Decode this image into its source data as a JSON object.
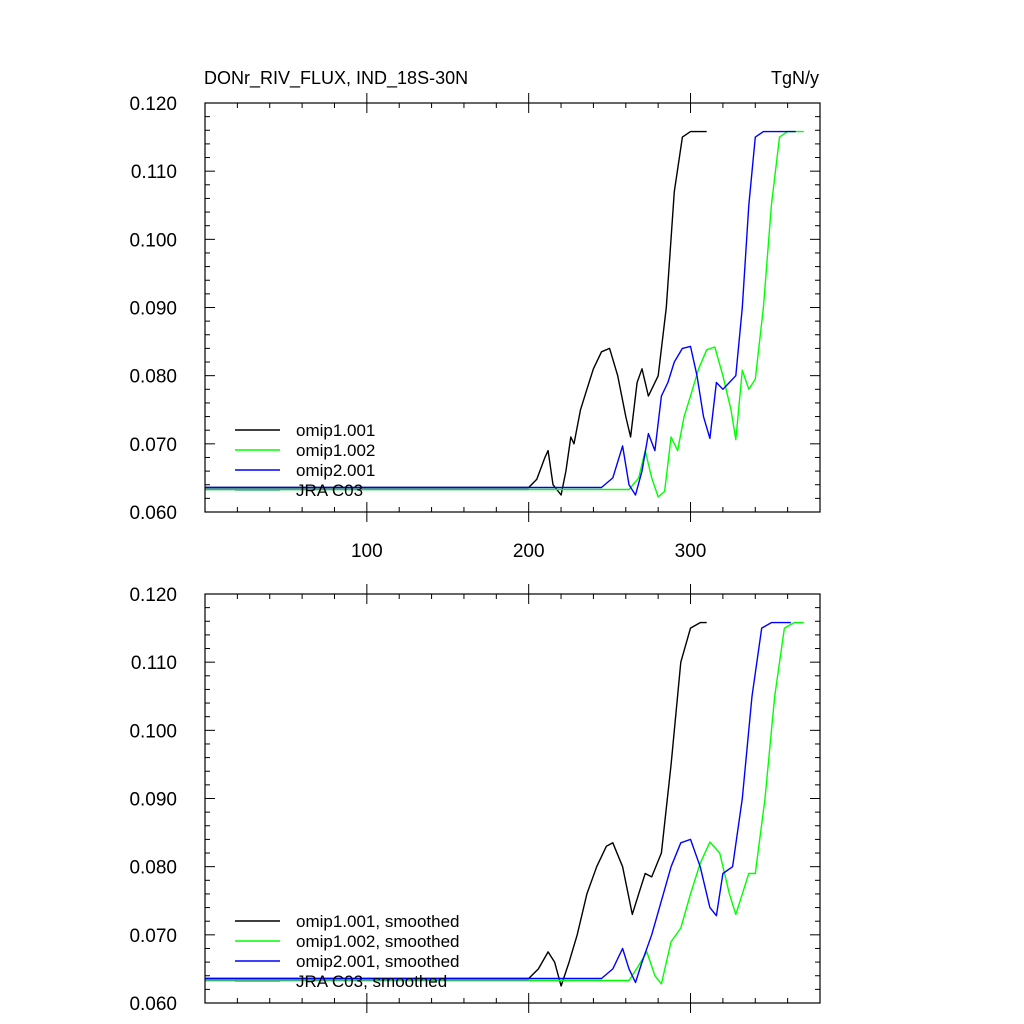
{
  "figure": {
    "title": "DONr_RIV_FLUX, IND_18S-30N",
    "units": "TgN/y"
  },
  "chart_data": [
    {
      "type": "line",
      "title": "DONr_RIV_FLUX, IND_18S-30N",
      "units": "TgN/y",
      "xlim": [
        0,
        380
      ],
      "ylim": [
        0.06,
        0.12
      ],
      "xticks": [
        100,
        200,
        300
      ],
      "xticklabels": [
        "100",
        "200",
        "300"
      ],
      "yticks": [
        0.06,
        0.07,
        0.08,
        0.09,
        0.1,
        0.11,
        0.12
      ],
      "yticklabels": [
        "0.060",
        "0.070",
        "0.080",
        "0.090",
        "0.100",
        "0.110",
        "0.120"
      ],
      "legend_position": "bottom-left",
      "series": [
        {
          "name": "omip1.001",
          "color": "#000000",
          "x": [
            0,
            200,
            205,
            210,
            212,
            215,
            220,
            223,
            226,
            228,
            232,
            236,
            240,
            245,
            250,
            255,
            260,
            263,
            267,
            270,
            274,
            280,
            285,
            290,
            295,
            300,
            305,
            310
          ],
          "y": [
            0.0636,
            0.0636,
            0.0648,
            0.068,
            0.069,
            0.064,
            0.0625,
            0.066,
            0.071,
            0.07,
            0.075,
            0.078,
            0.081,
            0.0835,
            0.084,
            0.08,
            0.074,
            0.071,
            0.079,
            0.081,
            0.077,
            0.08,
            0.09,
            0.107,
            0.115,
            0.1158,
            0.1158,
            0.1158
          ]
        },
        {
          "name": "omip1.002",
          "color": "#00ff00",
          "x": [
            0,
            240,
            262,
            268,
            272,
            276,
            280,
            284,
            288,
            292,
            296,
            300,
            305,
            310,
            315,
            320,
            325,
            328,
            332,
            336,
            340,
            345,
            350,
            355,
            360,
            365,
            370
          ],
          "y": [
            0.0633,
            0.0633,
            0.0633,
            0.065,
            0.069,
            0.065,
            0.0622,
            0.063,
            0.071,
            0.069,
            0.074,
            0.077,
            0.081,
            0.0838,
            0.0842,
            0.08,
            0.075,
            0.0706,
            0.0808,
            0.078,
            0.0795,
            0.09,
            0.105,
            0.115,
            0.1158,
            0.1158,
            0.1158
          ]
        },
        {
          "name": "omip2.001",
          "color": "#0000ff",
          "x": [
            0,
            245,
            252,
            258,
            262,
            266,
            270,
            274,
            278,
            282,
            286,
            290,
            295,
            300,
            304,
            308,
            312,
            316,
            320,
            324,
            328,
            332,
            336,
            340,
            345,
            350,
            355,
            360,
            365
          ],
          "y": [
            0.0636,
            0.0636,
            0.065,
            0.0697,
            0.064,
            0.0625,
            0.066,
            0.0715,
            0.069,
            0.077,
            0.079,
            0.082,
            0.084,
            0.0843,
            0.08,
            0.074,
            0.0708,
            0.079,
            0.078,
            0.079,
            0.08,
            0.09,
            0.105,
            0.115,
            0.1158,
            0.1158,
            0.1158,
            0.1158,
            0.1158
          ]
        },
        {
          "name": "JRA C03",
          "color": "#3cb371",
          "x": [
            0,
            200
          ],
          "y": [
            0.0633,
            0.0633
          ]
        }
      ]
    },
    {
      "type": "line",
      "title": "",
      "xlim": [
        0,
        380
      ],
      "ylim": [
        0.06,
        0.12
      ],
      "xticks": [
        100,
        200,
        300
      ],
      "xticklabels": [],
      "yticks": [
        0.06,
        0.07,
        0.08,
        0.09,
        0.1,
        0.11,
        0.12
      ],
      "yticklabels": [
        "0.060",
        "0.070",
        "0.080",
        "0.090",
        "0.100",
        "0.110",
        "0.120"
      ],
      "legend_position": "bottom-left",
      "series": [
        {
          "name": "omip1.001, smoothed",
          "color": "#000000",
          "x": [
            0,
            200,
            206,
            212,
            216,
            220,
            225,
            230,
            236,
            242,
            248,
            252,
            258,
            264,
            268,
            272,
            276,
            282,
            288,
            294,
            300,
            306,
            310
          ],
          "y": [
            0.0636,
            0.0636,
            0.065,
            0.0675,
            0.066,
            0.0625,
            0.066,
            0.07,
            0.076,
            0.08,
            0.083,
            0.0835,
            0.08,
            0.073,
            0.076,
            0.079,
            0.0785,
            0.082,
            0.095,
            0.11,
            0.115,
            0.1158,
            0.1158
          ]
        },
        {
          "name": "omip1.002, smoothed",
          "color": "#00ff00",
          "x": [
            0,
            250,
            262,
            268,
            273,
            278,
            282,
            288,
            294,
            300,
            306,
            312,
            318,
            324,
            328,
            332,
            336,
            340,
            346,
            352,
            358,
            364,
            370
          ],
          "y": [
            0.0633,
            0.0633,
            0.0633,
            0.0655,
            0.0675,
            0.064,
            0.0628,
            0.069,
            0.071,
            0.076,
            0.0805,
            0.0836,
            0.082,
            0.076,
            0.073,
            0.076,
            0.079,
            0.079,
            0.09,
            0.105,
            0.115,
            0.1158,
            0.1158
          ]
        },
        {
          "name": "omip2.001, smoothed",
          "color": "#0000ff",
          "x": [
            0,
            245,
            252,
            258,
            262,
            266,
            270,
            276,
            282,
            288,
            294,
            300,
            306,
            312,
            316,
            320,
            326,
            332,
            338,
            344,
            350,
            356,
            362
          ],
          "y": [
            0.0636,
            0.0636,
            0.065,
            0.068,
            0.065,
            0.063,
            0.066,
            0.07,
            0.075,
            0.08,
            0.0835,
            0.084,
            0.08,
            0.074,
            0.0728,
            0.079,
            0.08,
            0.09,
            0.105,
            0.115,
            0.1158,
            0.1158,
            0.1158
          ]
        },
        {
          "name": "JRA C03, smoothed",
          "color": "#3cb371",
          "x": [
            0,
            200
          ],
          "y": [
            0.0633,
            0.0633
          ]
        }
      ]
    }
  ]
}
